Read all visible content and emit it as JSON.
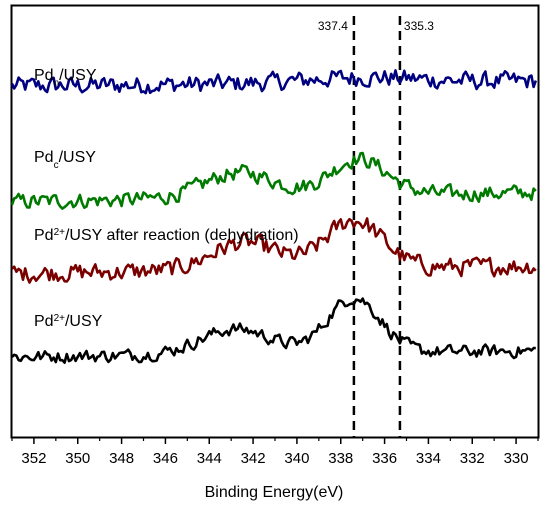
{
  "chart_data": {
    "type": "line",
    "xlabel": "Binding Energy(eV)",
    "ylabel": "",
    "xlim": [
      353,
      329
    ],
    "x_reversed": true,
    "xticks": [
      352,
      350,
      348,
      346,
      344,
      342,
      340,
      338,
      336,
      334,
      332,
      330
    ],
    "grid": false,
    "legend": "none",
    "reference_lines": [
      {
        "x": 337.4,
        "label": "337.4",
        "style": "dashed"
      },
      {
        "x": 335.3,
        "label": "335.3",
        "style": "dashed"
      }
    ],
    "series": [
      {
        "name_parts": [
          "Pd",
          "n",
          "/USY"
        ],
        "name_script": "sub",
        "color": "#000080",
        "baseline": 0.78,
        "slope": 0.0045,
        "noise": 0.35,
        "peaks": [
          {
            "center": 337.0,
            "height": 0.12,
            "width": 2.5
          }
        ]
      },
      {
        "name_parts": [
          "Pd",
          "c",
          "/USY"
        ],
        "name_script": "sub",
        "color": "#007a00",
        "baseline": 0.22,
        "slope": 0.0085,
        "noise": 0.3,
        "peaks": [
          {
            "center": 342.6,
            "height": 0.55,
            "width": 1.6
          },
          {
            "center": 337.2,
            "height": 0.8,
            "width": 1.3
          }
        ]
      },
      {
        "name_parts": [
          "Pd",
          "2+",
          "/USY after reaction (dehydration)"
        ],
        "name_script": "sup",
        "color": "#7a0000",
        "baseline": 0.25,
        "slope": 0.007,
        "noise": 0.35,
        "peaks": [
          {
            "center": 342.4,
            "height": 0.6,
            "width": 1.5
          },
          {
            "center": 337.4,
            "height": 1.05,
            "width": 1.3
          }
        ]
      },
      {
        "name_parts": [
          "Pd",
          "2+",
          "/USY"
        ],
        "name_script": "sup",
        "color": "#000000",
        "baseline": 0.22,
        "slope": 0.0055,
        "noise": 0.25,
        "peaks": [
          {
            "center": 342.8,
            "height": 0.55,
            "width": 1.6
          },
          {
            "center": 337.4,
            "height": 1.2,
            "width": 1.2
          }
        ]
      }
    ]
  }
}
